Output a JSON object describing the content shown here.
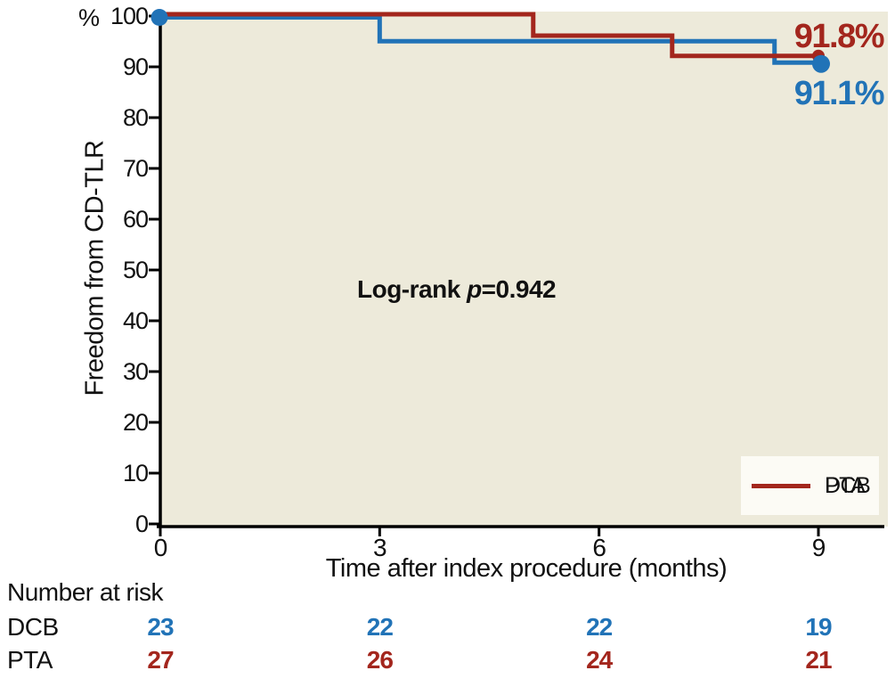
{
  "chart_data": {
    "type": "line",
    "subtype": "kaplan-meier-step-curves",
    "xlabel": "Time after index procedure (months)",
    "ylabel": "Freedom from CD-TLR",
    "y_unit": "%",
    "xlim": [
      0,
      9
    ],
    "ylim": [
      0,
      100
    ],
    "xticks": [
      0,
      3,
      6,
      9
    ],
    "yticks": [
      0,
      10,
      20,
      30,
      40,
      50,
      60,
      70,
      80,
      90,
      100
    ],
    "grid": false,
    "legend_position": "bottom-right",
    "annotation": {
      "prefix": "Log-rank ",
      "p_symbol": "p",
      "value": "=0.942"
    },
    "series": [
      {
        "name": "DCB",
        "color": "#2173b7",
        "final_label": "91.1%",
        "final_value": 91.1,
        "steps": [
          [
            0,
            100
          ],
          [
            3,
            100
          ],
          [
            3,
            95.3
          ],
          [
            8.4,
            95.3
          ],
          [
            8.4,
            91.1
          ],
          [
            9,
            91.1
          ]
        ]
      },
      {
        "name": "PTA",
        "color": "#a3261d",
        "final_label": "91.8%",
        "final_value": 91.8,
        "steps": [
          [
            0,
            100
          ],
          [
            5.1,
            100
          ],
          [
            5.1,
            95.8
          ],
          [
            7,
            95.8
          ],
          [
            7,
            91.8
          ],
          [
            9,
            91.8
          ]
        ]
      }
    ],
    "number_at_risk": {
      "label": "Number at risk",
      "times": [
        0,
        3,
        6,
        9
      ],
      "rows": [
        {
          "name": "DCB",
          "values": [
            23,
            22,
            22,
            19
          ]
        },
        {
          "name": "PTA",
          "values": [
            27,
            26,
            24,
            21
          ]
        }
      ]
    }
  },
  "colors": {
    "plot_bg": "#edeada",
    "axis": "#000000",
    "legend_bg": "#fcfbf5",
    "dcb_blue": "#2173b7",
    "pta_red": "#a3261d"
  }
}
